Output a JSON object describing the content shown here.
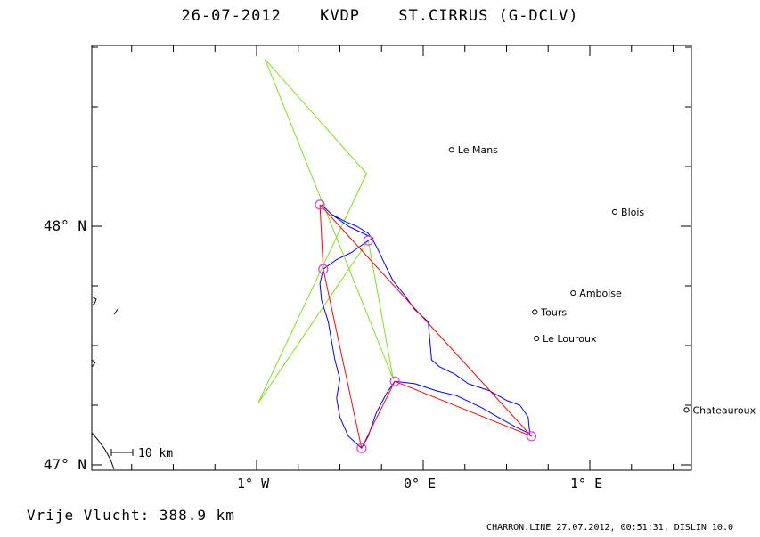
{
  "header": {
    "date": "26-07-2012",
    "airfield": "KVDP",
    "glider": "ST.CIRRUS (G-DCLV)"
  },
  "axes": {
    "lat_labels": [
      {
        "text": "48° N",
        "lat": 48
      },
      {
        "text": "47° N",
        "lat": 47
      }
    ],
    "lon_labels": [
      {
        "text": "1° W",
        "lon": -1
      },
      {
        "text": "0° E",
        "lon": 0
      },
      {
        "text": "1° E",
        "lon": 1
      }
    ]
  },
  "towns": [
    {
      "name": "Le Mans",
      "lat": 48.32,
      "lon": 0.17
    },
    {
      "name": "Blois",
      "lat": 48.06,
      "lon": 1.15
    },
    {
      "name": "Amboise",
      "lat": 47.72,
      "lon": 0.9
    },
    {
      "name": "Tours",
      "lat": 47.64,
      "lon": 0.67
    },
    {
      "name": "Le Louroux",
      "lat": 47.53,
      "lon": 0.68
    },
    {
      "name": "Chateauroux",
      "lat": 47.23,
      "lon": 1.58
    }
  ],
  "task_route": [
    {
      "lat": 48.09,
      "lon": -0.62
    },
    {
      "lat": 47.82,
      "lon": -0.6
    },
    {
      "lat": 47.07,
      "lon": -0.37
    },
    {
      "lat": 47.35,
      "lon": -0.17
    },
    {
      "lat": 47.12,
      "lon": 0.65
    },
    {
      "lat": 48.09,
      "lon": -0.62
    }
  ],
  "turnpoints": [
    {
      "lat": 48.09,
      "lon": -0.62
    },
    {
      "lat": 47.94,
      "lon": -0.33
    },
    {
      "lat": 47.82,
      "lon": -0.6
    },
    {
      "lat": 47.07,
      "lon": -0.37
    },
    {
      "lat": 47.35,
      "lon": -0.17
    },
    {
      "lat": 47.12,
      "lon": 0.65
    }
  ],
  "optimized_route": [
    {
      "lat": 48.7,
      "lon": -0.95
    },
    {
      "lat": 48.22,
      "lon": -0.34
    },
    {
      "lat": 47.26,
      "lon": -0.99
    },
    {
      "lat": 47.94,
      "lon": -0.33
    },
    {
      "lat": 47.36,
      "lon": -0.18
    },
    {
      "lat": 48.7,
      "lon": -0.95
    }
  ],
  "flight_track": [
    {
      "lat": 48.09,
      "lon": -0.61
    },
    {
      "lat": 48.05,
      "lon": -0.55
    },
    {
      "lat": 48.02,
      "lon": -0.47
    },
    {
      "lat": 48.0,
      "lon": -0.4
    },
    {
      "lat": 47.97,
      "lon": -0.33
    },
    {
      "lat": 47.94,
      "lon": -0.3
    },
    {
      "lat": 47.9,
      "lon": -0.27
    },
    {
      "lat": 47.84,
      "lon": -0.23
    },
    {
      "lat": 47.77,
      "lon": -0.18
    },
    {
      "lat": 47.71,
      "lon": -0.11
    },
    {
      "lat": 47.65,
      "lon": -0.05
    },
    {
      "lat": 47.6,
      "lon": 0.03
    },
    {
      "lat": 47.52,
      "lon": 0.04
    },
    {
      "lat": 47.44,
      "lon": 0.05
    },
    {
      "lat": 47.41,
      "lon": 0.1
    },
    {
      "lat": 47.38,
      "lon": 0.19
    },
    {
      "lat": 47.34,
      "lon": 0.27
    },
    {
      "lat": 47.31,
      "lon": 0.4
    },
    {
      "lat": 47.27,
      "lon": 0.5
    },
    {
      "lat": 47.25,
      "lon": 0.58
    },
    {
      "lat": 47.2,
      "lon": 0.63
    },
    {
      "lat": 47.13,
      "lon": 0.64
    },
    {
      "lat": 47.16,
      "lon": 0.55
    },
    {
      "lat": 47.2,
      "lon": 0.45
    },
    {
      "lat": 47.24,
      "lon": 0.35
    },
    {
      "lat": 47.29,
      "lon": 0.2
    },
    {
      "lat": 47.31,
      "lon": 0.08
    },
    {
      "lat": 47.34,
      "lon": -0.05
    },
    {
      "lat": 47.35,
      "lon": -0.17
    },
    {
      "lat": 47.3,
      "lon": -0.22
    },
    {
      "lat": 47.22,
      "lon": -0.28
    },
    {
      "lat": 47.12,
      "lon": -0.33
    },
    {
      "lat": 47.07,
      "lon": -0.37
    },
    {
      "lat": 47.12,
      "lon": -0.45
    },
    {
      "lat": 47.2,
      "lon": -0.5
    },
    {
      "lat": 47.28,
      "lon": -0.52
    },
    {
      "lat": 47.36,
      "lon": -0.5
    },
    {
      "lat": 47.44,
      "lon": -0.53
    },
    {
      "lat": 47.52,
      "lon": -0.55
    },
    {
      "lat": 47.6,
      "lon": -0.57
    },
    {
      "lat": 47.69,
      "lon": -0.61
    },
    {
      "lat": 47.76,
      "lon": -0.62
    },
    {
      "lat": 47.82,
      "lon": -0.6
    },
    {
      "lat": 47.86,
      "lon": -0.52
    },
    {
      "lat": 47.89,
      "lon": -0.43
    },
    {
      "lat": 47.92,
      "lon": -0.37
    },
    {
      "lat": 47.94,
      "lon": -0.33
    },
    {
      "lat": 47.95,
      "lon": -0.3
    },
    {
      "lat": 47.97,
      "lon": -0.36
    },
    {
      "lat": 48.0,
      "lon": -0.45
    },
    {
      "lat": 48.05,
      "lon": -0.55
    },
    {
      "lat": 48.09,
      "lon": -0.61
    }
  ],
  "scale_bar": {
    "label": "10 km"
  },
  "distance_label": "Vrije Vlucht:  388.9 km",
  "footer": "CHARRON.LINE 27.07.2012, 00:51:31, DISLIN 10.0",
  "colors": {
    "task": "#ff0000",
    "optimized": "#7fe01c",
    "track": "#0000ff",
    "turnpoint": "#e040e0",
    "frame": "#000000"
  }
}
